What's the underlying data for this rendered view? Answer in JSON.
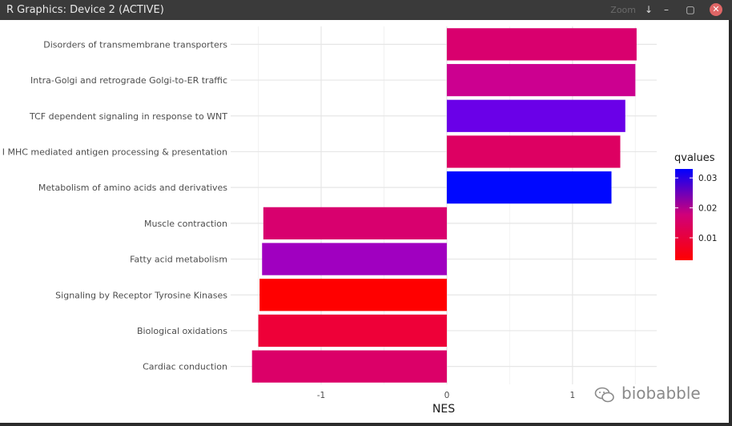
{
  "window": {
    "title": "R Graphics: Device 2 (ACTIVE)",
    "buttons": [
      "↓",
      "–",
      "▢",
      "✕"
    ],
    "background_text": "Zoom"
  },
  "chart_data": {
    "type": "bar",
    "orientation": "horizontal",
    "categories": [
      "Disorders of transmembrane transporters",
      "Intra-Golgi and retrograde Golgi-to-ER traffic",
      "TCF dependent signaling in response to WNT",
      "ss I MHC mediated antigen processing & presentation",
      "Metabolism of amino acids and derivatives",
      "Muscle contraction",
      "Fatty acid metabolism",
      "Signaling by Receptor Tyrosine Kinases",
      "Biological oxidations",
      "Cardiac conduction"
    ],
    "values": [
      1.51,
      1.5,
      1.42,
      1.38,
      1.31,
      -1.46,
      -1.47,
      -1.49,
      -1.5,
      -1.55
    ],
    "colors": [
      "#d9006e",
      "#cc0090",
      "#6a00e8",
      "#dd0062",
      "#0008ff",
      "#d8006e",
      "#a000c0",
      "#ff0000",
      "#ee0038",
      "#db0068"
    ],
    "xlabel": "NES",
    "ylabel": "",
    "xlim": [
      -1.72,
      1.67
    ],
    "x_ticks": [
      "-1",
      "0",
      "1"
    ],
    "x_tick_values": [
      -1,
      0,
      1
    ],
    "grid": true,
    "legend": {
      "title": "qvalues",
      "labels": [
        "0.03",
        "0.02",
        "0.01"
      ],
      "label_values": [
        0.03,
        0.02,
        0.01
      ],
      "range": [
        0.0025,
        0.033
      ],
      "low_color": "#ff0000",
      "mid_color": "#d0007a",
      "high_color": "#0000ff",
      "position": "right"
    }
  },
  "watermark": {
    "text": "biobabble"
  }
}
